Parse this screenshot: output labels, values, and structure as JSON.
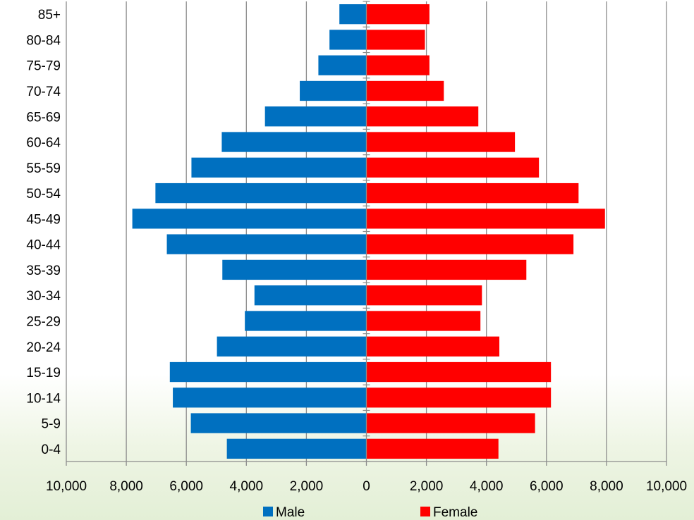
{
  "chart_data": {
    "type": "bar",
    "orientation": "horizontal",
    "subtype": "population-pyramid",
    "categories": [
      "0-4",
      "5-9",
      "10-14",
      "15-19",
      "20-24",
      "25-29",
      "30-34",
      "35-39",
      "40-44",
      "45-49",
      "50-54",
      "55-59",
      "60-64",
      "65-69",
      "70-74",
      "75-79",
      "80-84",
      "85+"
    ],
    "series": [
      {
        "name": "Male",
        "color": "#0070c0",
        "direction": "left",
        "values": [
          4650,
          5850,
          6450,
          6550,
          4980,
          4050,
          3730,
          4800,
          6650,
          7800,
          7030,
          5830,
          4820,
          3380,
          2220,
          1600,
          1230,
          900
        ]
      },
      {
        "name": "Female",
        "color": "#ff0000",
        "direction": "right",
        "values": [
          4400,
          5620,
          6150,
          6150,
          4430,
          3800,
          3850,
          5330,
          6900,
          7950,
          7070,
          5750,
          4950,
          3730,
          2580,
          2100,
          1950,
          2100
        ]
      }
    ],
    "xlim": [
      -10000,
      10000
    ],
    "xticks": [
      "10,000",
      "8,000",
      "6,000",
      "4,000",
      "2,000",
      "0",
      "2,000",
      "4,000",
      "6,000",
      "8,000",
      "10,000"
    ],
    "xtick_values": [
      -10000,
      -8000,
      -6000,
      -4000,
      -2000,
      0,
      2000,
      4000,
      6000,
      8000,
      10000
    ],
    "grid": true,
    "legend": "bottom",
    "title": "",
    "xlabel": "",
    "ylabel": ""
  },
  "legend": {
    "male": "Male",
    "female": "Female"
  }
}
